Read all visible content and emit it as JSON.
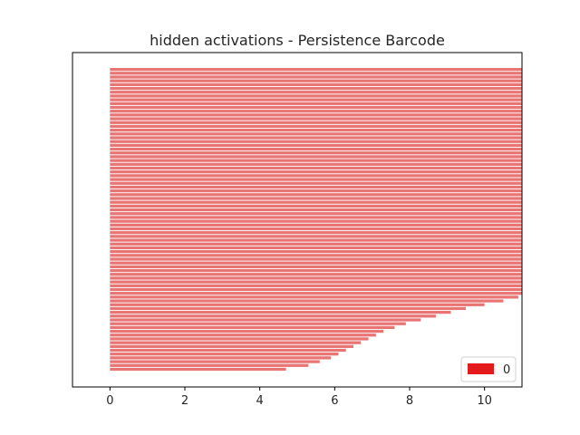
{
  "chart_data": {
    "type": "bar",
    "orientation": "horizontal",
    "title": "hidden activations - Persistence Barcode",
    "xlabel": "",
    "ylabel": "",
    "xlim": [
      -1,
      11
    ],
    "x_ticks": [
      "0",
      "2",
      "4",
      "6",
      "8",
      "10"
    ],
    "y_ticks_visible": false,
    "grid": false,
    "legend": {
      "placement": "bottom-right",
      "entries": [
        {
          "label": "0",
          "color": "#e41a1c"
        }
      ]
    },
    "bar_color": "#e87474",
    "bar_start": 0,
    "num_bars": 80,
    "infinite_bars_end": 11,
    "finite_bar_ends": [
      4.7,
      5.3,
      5.6,
      5.9,
      6.1,
      6.3,
      6.5,
      6.7,
      6.9,
      7.1,
      7.3,
      7.6,
      7.9,
      8.3,
      8.7,
      9.1,
      9.5,
      10.0,
      10.5,
      10.9
    ],
    "series": [
      {
        "name": "0",
        "color": "#e41a1c"
      }
    ]
  }
}
